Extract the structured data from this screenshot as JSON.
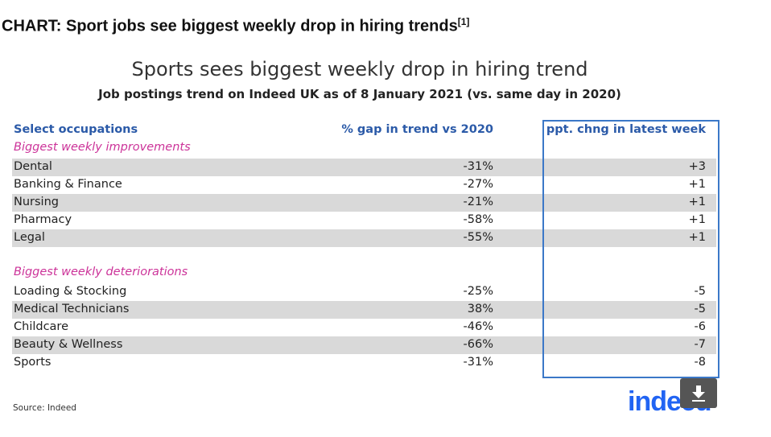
{
  "header": {
    "title": "CHART: Sport jobs see biggest weekly drop in hiring trends",
    "footnote": "[1]"
  },
  "table": {
    "title": "Sports sees biggest weekly drop in hiring trend",
    "subtitle": "Job postings trend on Indeed UK as of 8 January 2021 (vs. same day in 2020)",
    "columns": [
      "Select occupations",
      "% gap in trend vs 2020",
      "ppt. chng in latest week"
    ],
    "sections": [
      {
        "label": "Biggest weekly improvements",
        "rows": [
          [
            "Dental",
            "-31%",
            "+3"
          ],
          [
            "Banking & Finance",
            "-27%",
            "+1"
          ],
          [
            "Nursing",
            "-21%",
            "+1"
          ],
          [
            "Pharmacy",
            "-58%",
            "+1"
          ],
          [
            "Legal",
            "-55%",
            "+1"
          ]
        ]
      },
      {
        "label": "Biggest weekly deteriorations",
        "rows": [
          [
            "Loading & Stocking",
            "-25%",
            "-5"
          ],
          [
            "Medical Technicians",
            "38%",
            "-5"
          ],
          [
            "Childcare",
            "-46%",
            "-6"
          ],
          [
            "Beauty & Wellness",
            "-66%",
            "-7"
          ],
          [
            "Sports",
            "-31%",
            "-8"
          ]
        ]
      }
    ],
    "source": "Source: Indeed"
  },
  "logo": "indeed"
}
